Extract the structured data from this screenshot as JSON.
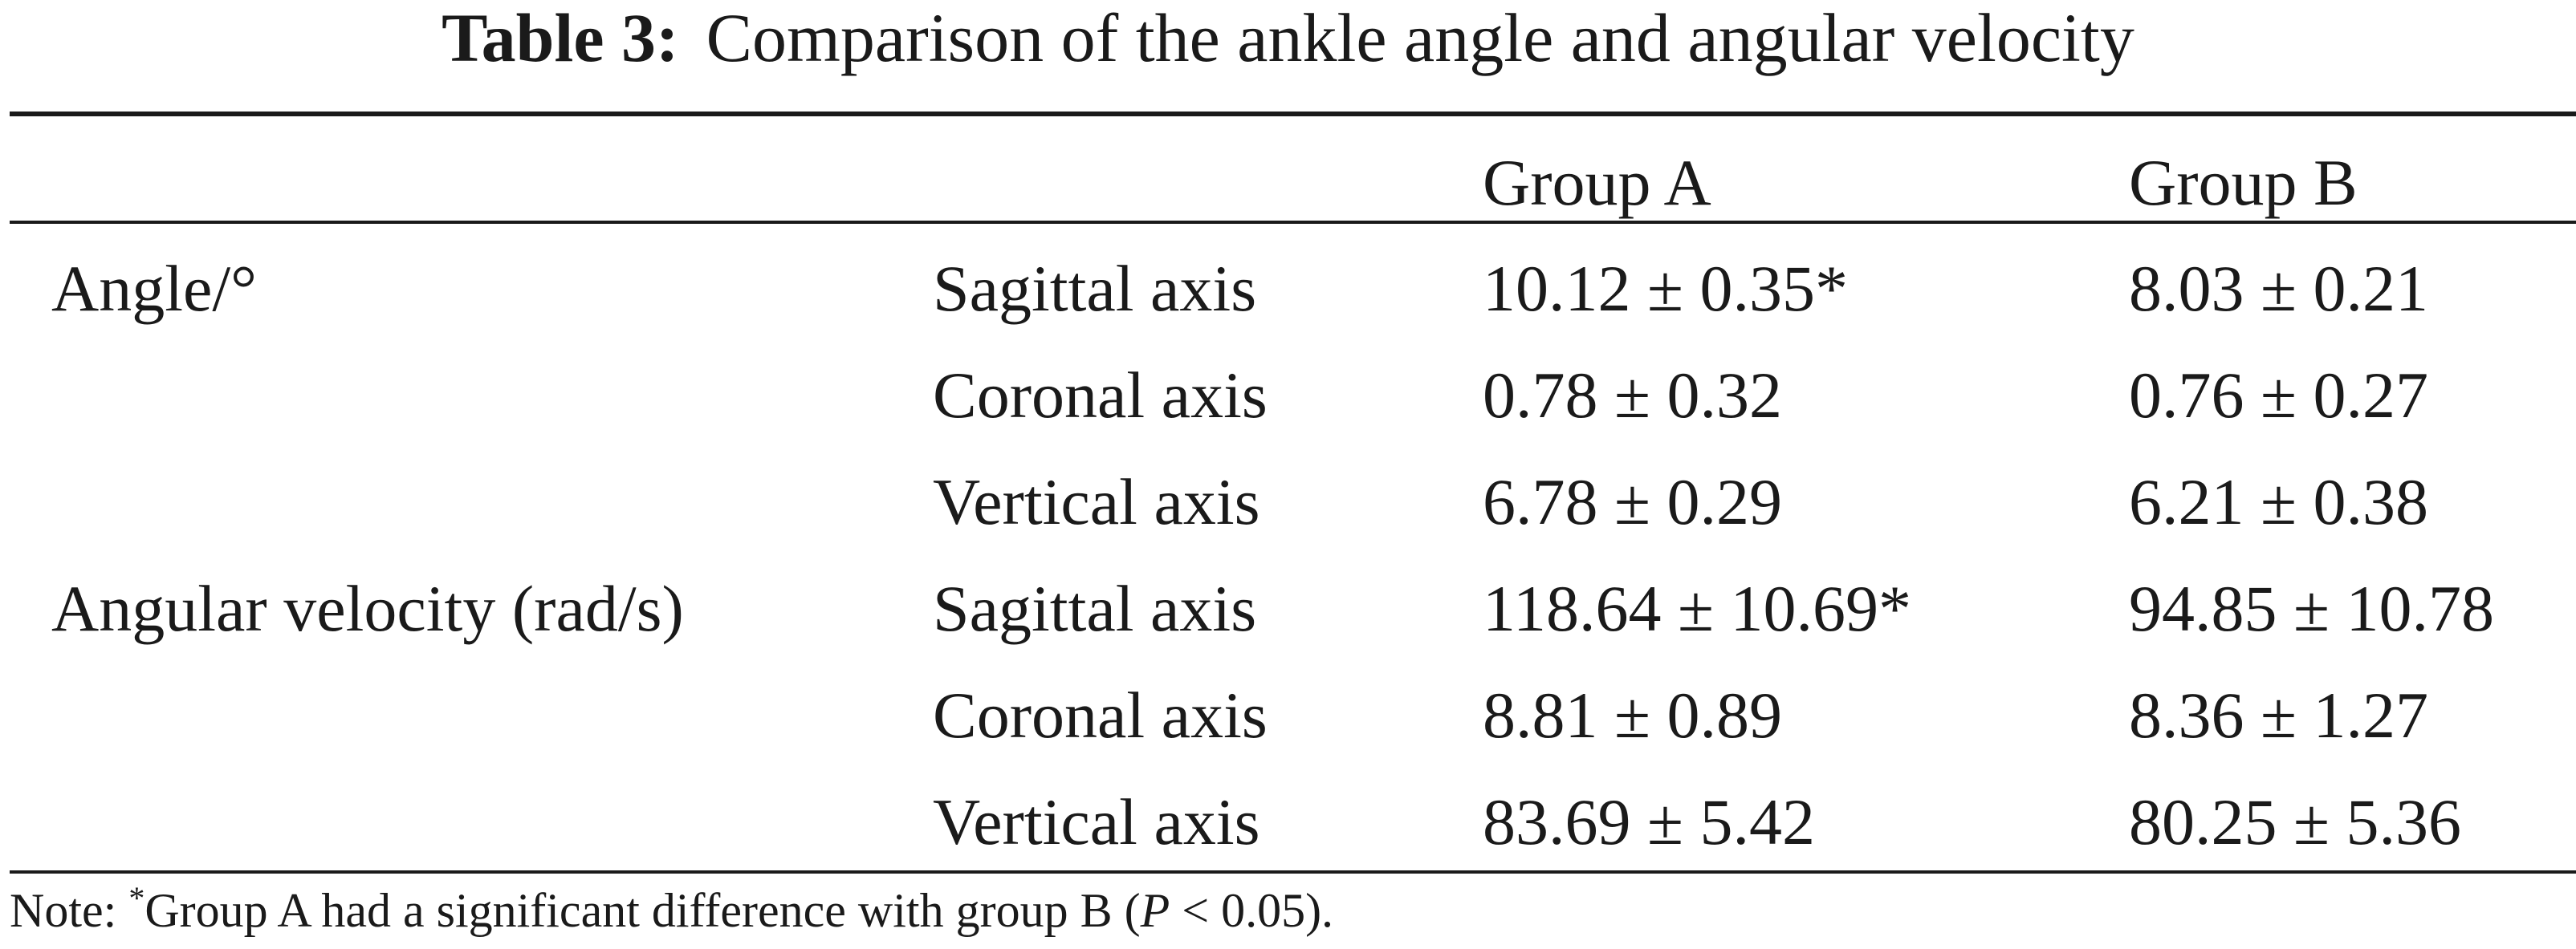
{
  "caption": {
    "label": "Table 3:",
    "title": "Comparison of the ankle angle and angular velocity"
  },
  "table": {
    "headers": [
      "",
      "",
      "Group A",
      "Group B"
    ],
    "rows": [
      {
        "group": "Angle/°",
        "axis": "Sagittal axis",
        "a": "10.12 ± 0.35*",
        "b": "8.03 ± 0.21"
      },
      {
        "group": "",
        "axis": "Coronal axis",
        "a": "0.78 ± 0.32",
        "b": "0.76 ± 0.27"
      },
      {
        "group": "",
        "axis": "Vertical axis",
        "a": "6.78 ± 0.29",
        "b": "6.21 ± 0.38"
      },
      {
        "group": "Angular velocity (rad/s)",
        "axis": "Sagittal axis",
        "a": "118.64 ± 10.69*",
        "b": "94.85 ± 10.78"
      },
      {
        "group": "",
        "axis": "Coronal axis",
        "a": "8.81 ± 0.89",
        "b": "8.36 ± 1.27"
      },
      {
        "group": "",
        "axis": "Vertical axis",
        "a": "83.69 ± 5.42",
        "b": "80.25 ± 5.36"
      }
    ]
  },
  "note": {
    "prefix": "Note: ",
    "marker": "*",
    "text_before": "Group A had a significant difference with group B (",
    "p_symbol": "P",
    "text_after": " < 0.05)."
  }
}
